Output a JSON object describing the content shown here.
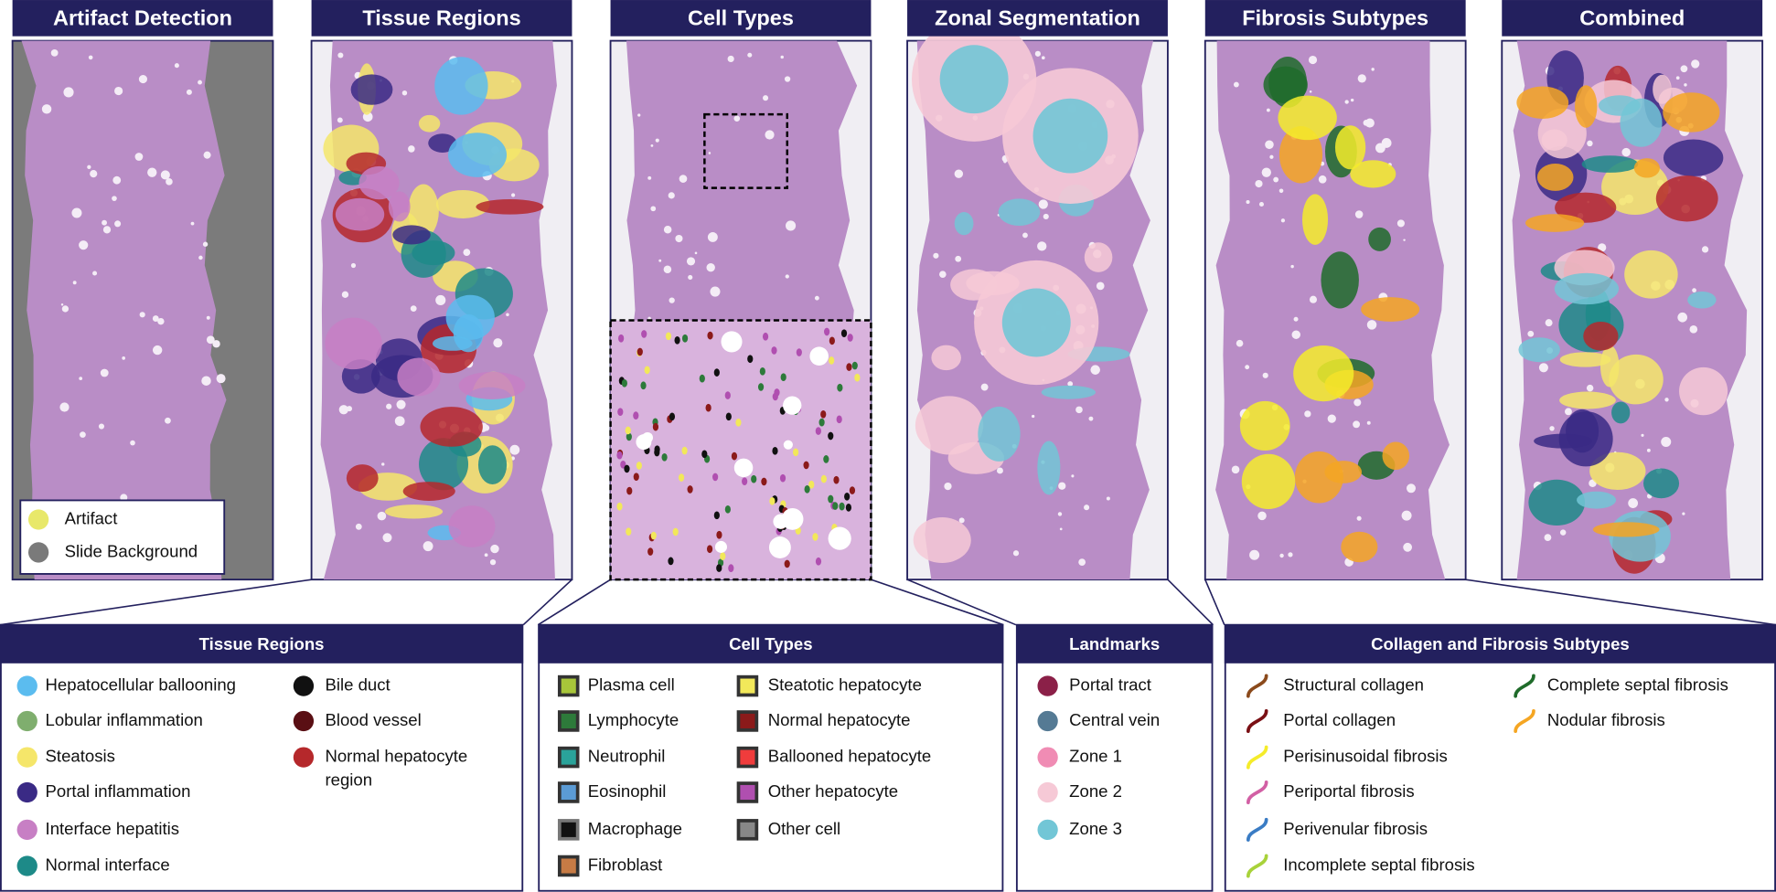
{
  "panels": [
    {
      "title": "Artifact Detection"
    },
    {
      "title": "Tissue Regions"
    },
    {
      "title": "Cell Types"
    },
    {
      "title": "Zonal Segmentation"
    },
    {
      "title": "Fibrosis Subtypes"
    },
    {
      "title": "Combined"
    }
  ],
  "artifact_legend": [
    {
      "label": "Artifact",
      "color": "#e8e86a"
    },
    {
      "label": "Slide Background",
      "color": "#7a7a7a"
    }
  ],
  "legends": [
    {
      "title": "Tissue Regions",
      "marker": "circle",
      "columns": [
        [
          {
            "label": "Hepatocellular ballooning",
            "color": "#5bbcef"
          },
          {
            "label": "Lobular inflammation",
            "color": "#7fae6e"
          },
          {
            "label": "Steatosis",
            "color": "#f5e66a"
          },
          {
            "label": "Portal inflammation",
            "color": "#3a2a85"
          },
          {
            "label": "Interface hepatitis",
            "color": "#c77fc4"
          },
          {
            "label": "Normal interface",
            "color": "#1d8a88"
          }
        ],
        [
          {
            "label": "Bile duct",
            "color": "#111111"
          },
          {
            "label": "Blood vessel",
            "color": "#5a0f14"
          },
          {
            "label": "Normal hepatocyte region",
            "color": "#b5282b"
          }
        ]
      ]
    },
    {
      "title": "Cell Types",
      "marker": "square",
      "columns": [
        [
          {
            "label": "Plasma cell",
            "color": "#a8c63a"
          },
          {
            "label": "Lymphocyte",
            "color": "#2d7a3a"
          },
          {
            "label": "Neutrophil",
            "color": "#2aa39a"
          },
          {
            "label": "Eosinophil",
            "color": "#5b9bd5"
          },
          {
            "label": "Macrophage",
            "color": "#111111"
          },
          {
            "label": "Fibroblast",
            "color": "#c77b45"
          }
        ],
        [
          {
            "label": "Steatotic hepatocyte",
            "color": "#f2e85a"
          },
          {
            "label": "Normal hepatocyte",
            "color": "#8b1a1a"
          },
          {
            "label": "Ballooned hepatocyte",
            "color": "#f03c3c"
          },
          {
            "label": "Other hepatocyte",
            "color": "#b04fb0"
          },
          {
            "label": "Other cell",
            "color": "#888888"
          }
        ]
      ]
    },
    {
      "title": "Landmarks",
      "marker": "circle",
      "columns": [
        [
          {
            "label": "Portal tract",
            "color": "#8b2048"
          },
          {
            "label": "Central vein",
            "color": "#557a94"
          },
          {
            "label": "Zone 1",
            "color": "#f08cb4"
          },
          {
            "label": "Zone 2",
            "color": "#f6c9d6"
          },
          {
            "label": "Zone 3",
            "color": "#72c6d6"
          }
        ]
      ]
    },
    {
      "title": "Collagen and Fibrosis Subtypes",
      "marker": "curve",
      "columns": [
        [
          {
            "label": "Structural collagen",
            "color": "#8b4a1c"
          },
          {
            "label": "Portal collagen",
            "color": "#7a0f14"
          },
          {
            "label": "Perisinusoidal fibrosis",
            "color": "#f5ec2a"
          },
          {
            "label": "Periportal fibrosis",
            "color": "#d25fa4"
          },
          {
            "label": "Perivenular fibrosis",
            "color": "#3a7cc4"
          },
          {
            "label": "Incomplete septal fibrosis",
            "color": "#a8d23a"
          }
        ],
        [
          {
            "label": "Complete septal fibrosis",
            "color": "#1f6b2a"
          },
          {
            "label": "Nodular fibrosis",
            "color": "#f5a623"
          }
        ]
      ]
    }
  ]
}
